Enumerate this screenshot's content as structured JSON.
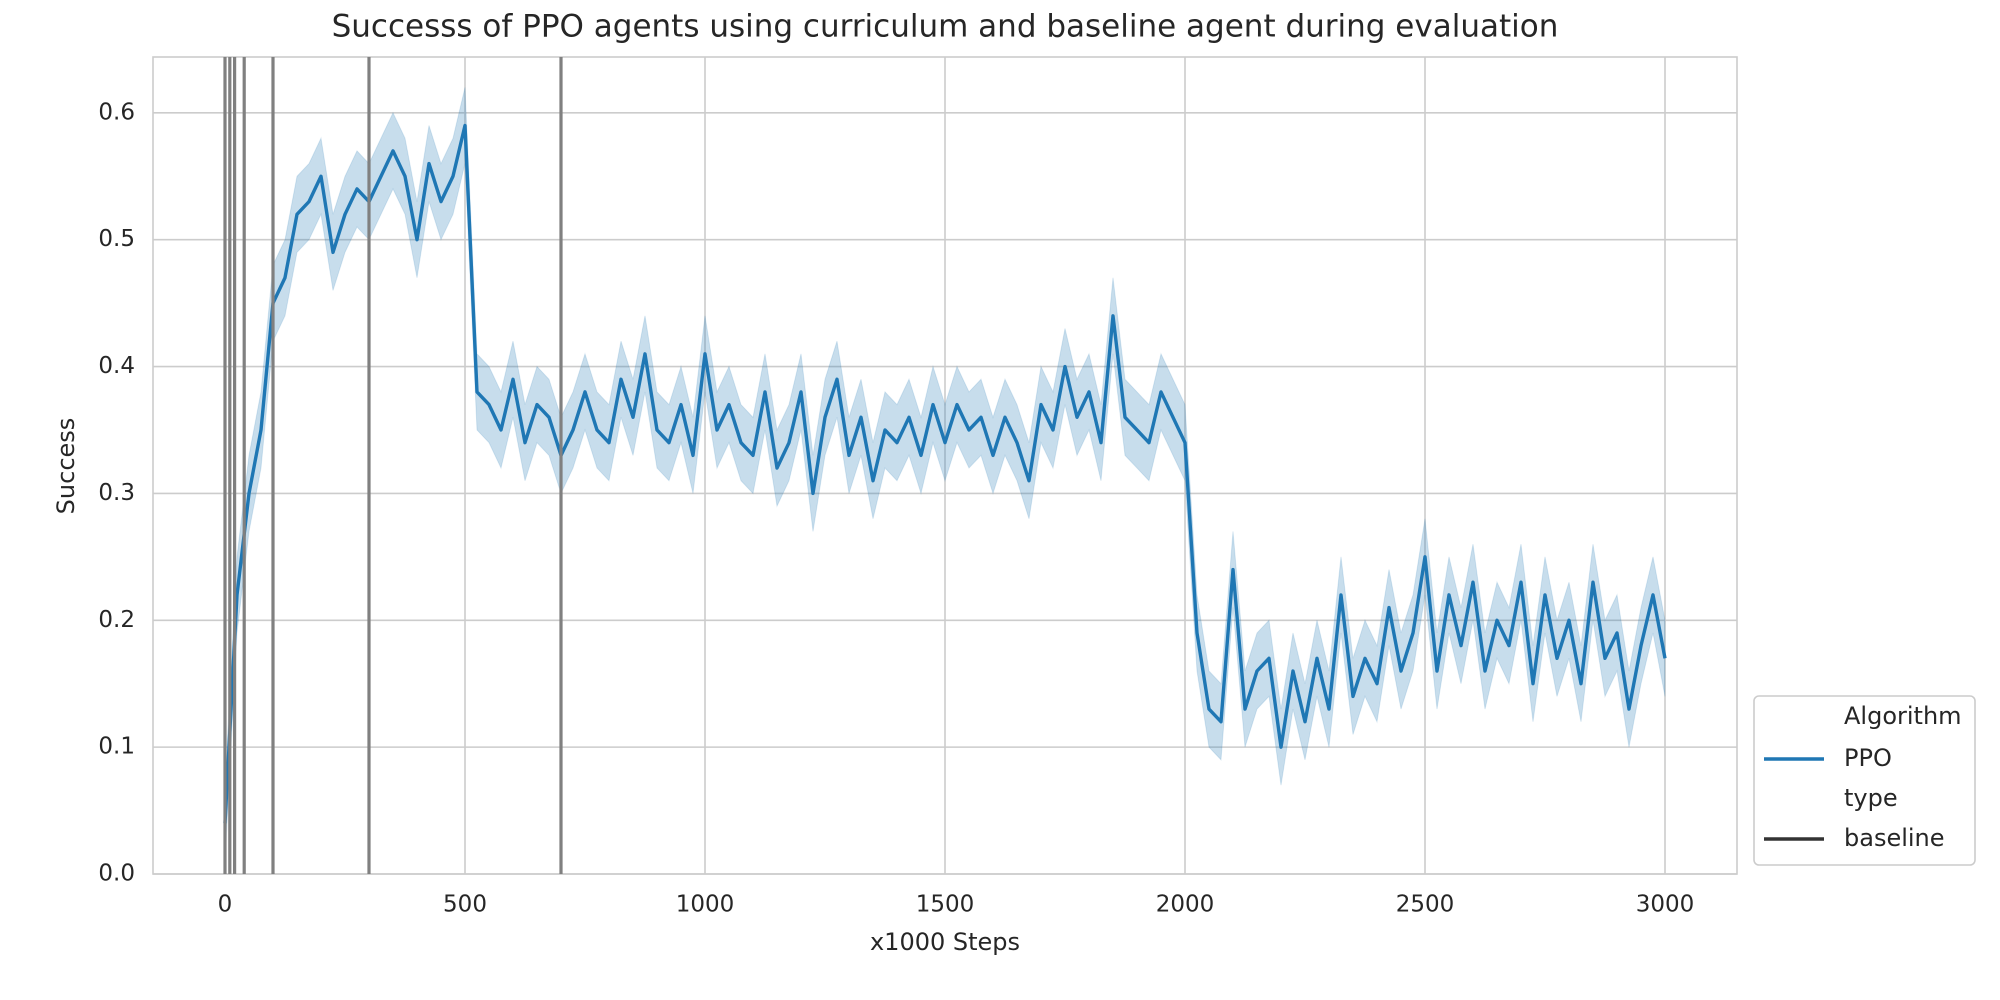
{
  "chart_data": {
    "type": "line",
    "title": "Successs of PPO agents using curriculum and baseline agent during evaluation",
    "x_label": "x1000 Steps",
    "y_label": "Success",
    "xlim": [
      -150,
      3150
    ],
    "ylim": [
      0,
      0.644
    ],
    "xticks": [
      0,
      500,
      1000,
      1500,
      2000,
      2500,
      3000
    ],
    "yticks": [
      {
        "value": 0,
        "label": "0.0"
      },
      0.1,
      0.2,
      0.3,
      0.4,
      0.5,
      0.6
    ],
    "grid": true,
    "x": [
      0,
      25,
      50,
      75,
      100,
      125,
      150,
      175,
      200,
      225,
      250,
      275,
      300,
      325,
      350,
      375,
      400,
      425,
      450,
      475,
      500,
      525,
      550,
      575,
      600,
      625,
      650,
      675,
      700,
      725,
      750,
      775,
      800,
      825,
      850,
      875,
      900,
      925,
      950,
      975,
      1000,
      1025,
      1050,
      1075,
      1100,
      1125,
      1150,
      1175,
      1200,
      1225,
      1250,
      1275,
      1300,
      1325,
      1350,
      1375,
      1400,
      1425,
      1450,
      1475,
      1500,
      1525,
      1550,
      1575,
      1600,
      1625,
      1650,
      1675,
      1700,
      1725,
      1750,
      1775,
      1800,
      1825,
      1850,
      1875,
      1900,
      1925,
      1950,
      1975,
      2000,
      2025,
      2050,
      2075,
      2100,
      2125,
      2150,
      2175,
      2200,
      2225,
      2250,
      2275,
      2300,
      2325,
      2350,
      2375,
      2400,
      2425,
      2450,
      2475,
      2500,
      2525,
      2550,
      2575,
      2600,
      2625,
      2650,
      2675,
      2700,
      2725,
      2750,
      2775,
      2800,
      2825,
      2850,
      2875,
      2900,
      2925,
      2950,
      2975,
      3000
    ],
    "series": [
      {
        "name": "PPO",
        "color": "#1f77b4",
        "values": [
          0.04,
          0.22,
          0.3,
          0.35,
          0.45,
          0.47,
          0.52,
          0.53,
          0.55,
          0.49,
          0.52,
          0.54,
          0.53,
          0.55,
          0.57,
          0.55,
          0.5,
          0.56,
          0.53,
          0.55,
          0.59,
          0.38,
          0.37,
          0.35,
          0.39,
          0.34,
          0.37,
          0.36,
          0.33,
          0.35,
          0.38,
          0.35,
          0.34,
          0.39,
          0.36,
          0.41,
          0.35,
          0.34,
          0.37,
          0.33,
          0.41,
          0.35,
          0.37,
          0.34,
          0.33,
          0.38,
          0.32,
          0.34,
          0.38,
          0.3,
          0.36,
          0.39,
          0.33,
          0.36,
          0.31,
          0.35,
          0.34,
          0.36,
          0.33,
          0.37,
          0.34,
          0.37,
          0.35,
          0.36,
          0.33,
          0.36,
          0.34,
          0.31,
          0.37,
          0.35,
          0.4,
          0.36,
          0.38,
          0.34,
          0.44,
          0.36,
          0.35,
          0.34,
          0.38,
          0.36,
          0.34,
          0.19,
          0.13,
          0.12,
          0.24,
          0.13,
          0.16,
          0.17,
          0.1,
          0.16,
          0.12,
          0.17,
          0.13,
          0.22,
          0.14,
          0.17,
          0.15,
          0.21,
          0.16,
          0.19,
          0.25,
          0.16,
          0.22,
          0.18,
          0.23,
          0.16,
          0.2,
          0.18,
          0.23,
          0.15,
          0.22,
          0.17,
          0.2,
          0.15,
          0.23,
          0.17,
          0.19,
          0.13,
          0.18,
          0.22,
          0.17
        ],
        "ci_lower": [
          0.01,
          0.19,
          0.27,
          0.32,
          0.42,
          0.44,
          0.49,
          0.5,
          0.52,
          0.46,
          0.49,
          0.51,
          0.5,
          0.52,
          0.54,
          0.52,
          0.47,
          0.53,
          0.5,
          0.52,
          0.56,
          0.35,
          0.34,
          0.32,
          0.36,
          0.31,
          0.34,
          0.33,
          0.3,
          0.32,
          0.35,
          0.32,
          0.31,
          0.36,
          0.33,
          0.38,
          0.32,
          0.31,
          0.34,
          0.3,
          0.38,
          0.32,
          0.34,
          0.31,
          0.3,
          0.35,
          0.29,
          0.31,
          0.35,
          0.27,
          0.33,
          0.36,
          0.3,
          0.33,
          0.28,
          0.32,
          0.31,
          0.33,
          0.3,
          0.34,
          0.31,
          0.34,
          0.32,
          0.33,
          0.3,
          0.33,
          0.31,
          0.28,
          0.34,
          0.32,
          0.37,
          0.33,
          0.35,
          0.31,
          0.41,
          0.33,
          0.32,
          0.31,
          0.35,
          0.33,
          0.31,
          0.16,
          0.1,
          0.09,
          0.21,
          0.1,
          0.13,
          0.14,
          0.07,
          0.13,
          0.09,
          0.14,
          0.1,
          0.19,
          0.11,
          0.14,
          0.12,
          0.18,
          0.13,
          0.16,
          0.22,
          0.13,
          0.19,
          0.15,
          0.2,
          0.13,
          0.17,
          0.15,
          0.2,
          0.12,
          0.19,
          0.14,
          0.17,
          0.12,
          0.2,
          0.14,
          0.16,
          0.1,
          0.15,
          0.19,
          0.14
        ],
        "ci_upper": [
          0.07,
          0.25,
          0.33,
          0.38,
          0.48,
          0.5,
          0.55,
          0.56,
          0.58,
          0.52,
          0.55,
          0.57,
          0.56,
          0.58,
          0.6,
          0.58,
          0.53,
          0.59,
          0.56,
          0.58,
          0.62,
          0.41,
          0.4,
          0.38,
          0.42,
          0.37,
          0.4,
          0.39,
          0.36,
          0.38,
          0.41,
          0.38,
          0.37,
          0.42,
          0.39,
          0.44,
          0.38,
          0.37,
          0.4,
          0.36,
          0.44,
          0.38,
          0.4,
          0.37,
          0.36,
          0.41,
          0.35,
          0.37,
          0.41,
          0.33,
          0.39,
          0.42,
          0.36,
          0.39,
          0.34,
          0.38,
          0.37,
          0.39,
          0.36,
          0.4,
          0.37,
          0.4,
          0.38,
          0.39,
          0.36,
          0.39,
          0.37,
          0.34,
          0.4,
          0.38,
          0.43,
          0.39,
          0.41,
          0.37,
          0.47,
          0.39,
          0.38,
          0.37,
          0.41,
          0.39,
          0.37,
          0.22,
          0.16,
          0.15,
          0.27,
          0.16,
          0.19,
          0.2,
          0.13,
          0.19,
          0.15,
          0.2,
          0.16,
          0.25,
          0.17,
          0.2,
          0.18,
          0.24,
          0.19,
          0.22,
          0.28,
          0.19,
          0.25,
          0.21,
          0.26,
          0.19,
          0.23,
          0.21,
          0.26,
          0.18,
          0.25,
          0.2,
          0.23,
          0.18,
          0.26,
          0.2,
          0.22,
          0.16,
          0.21,
          0.25,
          0.2
        ]
      }
    ],
    "vlines": {
      "x": [
        0,
        10,
        20,
        40,
        100,
        300,
        700
      ],
      "color": "#808080"
    },
    "legend": {
      "loc": "lower right",
      "hue_title": "Algorithm",
      "style_title": "type",
      "style_labels": [
        "baseline"
      ],
      "style_color": "#333333"
    }
  }
}
